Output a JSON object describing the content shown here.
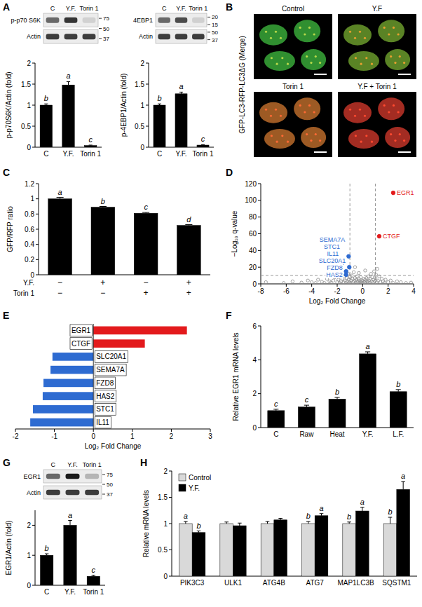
{
  "panel_letters": [
    "A",
    "B",
    "C",
    "D",
    "E",
    "F",
    "G",
    "H"
  ],
  "blots": [
    {
      "lanes": [
        "C",
        "Y.F.",
        "Torin 1"
      ],
      "rows": [
        "p-p70 S6K",
        "Actin"
      ],
      "markers": [
        75,
        50,
        37
      ]
    },
    {
      "lanes": [
        "C",
        "Y.F.",
        "Torin 1"
      ],
      "rows": [
        "4EBP1",
        "Actin"
      ],
      "markers": [
        20,
        15,
        50,
        37
      ]
    },
    {
      "lanes": [
        "C",
        "Y.F.",
        "Torin 1"
      ],
      "rows": [
        "EGR1",
        "Actin"
      ],
      "markers": [
        75,
        50,
        37
      ]
    }
  ],
  "images": {
    "side_label": "GFP-LC3-RFP-LC3ΔG (Merge)",
    "titles": [
      "Control",
      "Y.F",
      "Torin 1",
      "Y.F + Torin 1"
    ]
  },
  "chart_data": [
    {
      "type": "bar",
      "y_label": "p-p70S6K/Actin (fold)",
      "categories": [
        "C",
        "Y.F.",
        "Torin 1"
      ],
      "values": [
        1,
        1.48,
        0.04
      ],
      "errors": [
        0.03,
        0.08,
        0.01
      ],
      "letters": [
        "b",
        "a",
        "c"
      ],
      "color": "#000000",
      "ylim": [
        0,
        2
      ],
      "yticks": [
        0,
        0.5,
        1,
        1.5,
        2
      ]
    },
    {
      "type": "bar",
      "y_label": "p-4EBP1/Actin (fold)",
      "categories": [
        "C",
        "Y.F.",
        "Torin 1"
      ],
      "values": [
        1,
        1.27,
        0.05
      ],
      "errors": [
        0.03,
        0.04,
        0.01
      ],
      "letters": [
        "b",
        "a",
        "c"
      ],
      "color": "#000000",
      "ylim": [
        0,
        2
      ],
      "yticks": [
        0,
        0.5,
        1,
        1.5,
        2
      ]
    },
    {
      "type": "bar",
      "y_label": "GFP/RFP ratio",
      "values": [
        1,
        0.89,
        0.81,
        0.65
      ],
      "errors": [
        0.02,
        0.01,
        0.01,
        0.01
      ],
      "letters": [
        "a",
        "b",
        "c",
        "d"
      ],
      "color": "#000000",
      "ylim": [
        0,
        1.2
      ],
      "yticks": [
        0,
        0.2,
        0.4,
        0.6,
        0.8,
        1,
        1.2
      ],
      "table": {
        "rows": [
          {
            "label": "Y.F.",
            "cells": [
              "−",
              "+",
              "−",
              "+"
            ]
          },
          {
            "label": "Torin 1",
            "cells": [
              "−",
              "−",
              "+",
              "+"
            ]
          }
        ]
      }
    },
    {
      "type": "scatter",
      "x_label": "Log₂ Fold Change",
      "y_label": "−Log₁₀ q-value",
      "xlim": [
        -8,
        4
      ],
      "xticks": [
        -8,
        -6,
        -4,
        -2,
        0,
        2,
        4
      ],
      "ylim": [
        0,
        120
      ],
      "yticks": [
        0,
        20,
        40,
        60,
        80,
        100,
        120
      ],
      "reference_lines": {
        "x": [
          -1,
          1
        ],
        "y": [
          10
        ]
      },
      "series": [
        {
          "color": "#8c8c8c",
          "marker": "open-circle",
          "x": [
            -7.6,
            -6.2,
            -5.5,
            -4.8,
            -4.3,
            -4,
            -3.7,
            -3.5,
            -3.2,
            -3,
            -2.8,
            -2.6,
            -2.5,
            -2.3,
            -2.2,
            -2,
            -1.9,
            -1.8,
            -1.7,
            -1.6,
            -1.5,
            -1.45,
            -1.4,
            -1.3,
            -1.25,
            -1.2,
            -1.15,
            -1.1,
            -1.05,
            -1,
            -0.95,
            -0.9,
            -0.85,
            -0.8,
            -0.75,
            -0.7,
            -0.65,
            -0.6,
            -0.55,
            -0.5,
            -0.45,
            -0.4,
            -0.35,
            -0.3,
            -0.25,
            -0.2,
            -0.15,
            -0.1,
            -0.05,
            0,
            0.05,
            0.1,
            0.15,
            0.2,
            0.25,
            0.3,
            0.35,
            0.4,
            0.45,
            0.5,
            0.55,
            0.6,
            0.65,
            0.7,
            0.75,
            0.8,
            0.85,
            0.9,
            0.95,
            1,
            1.05,
            1.1,
            1.15,
            1.2,
            1.3,
            1.4,
            1.5,
            1.6,
            1.7,
            1.8,
            2,
            2.2,
            2.4,
            2.7,
            3,
            3.4,
            3.8,
            -0.6,
            0.2,
            -0.3
          ],
          "values": [
            2,
            1,
            3,
            1.5,
            4,
            2,
            1,
            5,
            2.5,
            1,
            6,
            3,
            1.5,
            4,
            8,
            2,
            5,
            1,
            3,
            6,
            2,
            9,
            4,
            1,
            7,
            3,
            12,
            5,
            2,
            8,
            1,
            4,
            10,
            6,
            2,
            14,
            3,
            7,
            1,
            5,
            9,
            2,
            4,
            6,
            1,
            3,
            8,
            2,
            4,
            1,
            3,
            6,
            2,
            5,
            1,
            7,
            3,
            2,
            9,
            4,
            1,
            6,
            12,
            3,
            8,
            2,
            5,
            15,
            3,
            7,
            11,
            2,
            18,
            4,
            9,
            2,
            6,
            3,
            1,
            5,
            2,
            4,
            1,
            3,
            2,
            1,
            1.5,
            20,
            16,
            13
          ]
        },
        {
          "color": "#e31a1c",
          "marker": "circle",
          "x": [
            2.4,
            1.3
          ],
          "values": [
            109,
            57
          ],
          "point_labels": [
            "EGR1",
            "CTGF"
          ]
        },
        {
          "color": "#2e6bd1",
          "marker": "circle",
          "x": [
            -1.1,
            -1.5,
            -1.6,
            -1.05,
            -1.3,
            -1.3
          ],
          "values": [
            33,
            29,
            25,
            20,
            15,
            11
          ],
          "point_labels": [
            "SEMA7A",
            "STC1",
            "IL11",
            "SLC20A1",
            "FZD8",
            "HAS2"
          ]
        }
      ]
    },
    {
      "type": "bar",
      "orientation": "horizontal",
      "x_label": "Log₂ Fold Change",
      "categories": [
        "EGR1",
        "CTGF",
        "SLC20A1",
        "SEMA7A",
        "FZD8",
        "HAS2",
        "STC1",
        "IL11"
      ],
      "values": [
        2.4,
        1.32,
        -1.05,
        -1.1,
        -1.28,
        -1.3,
        -1.55,
        -1.62
      ],
      "colors": [
        "#e31a1c",
        "#e31a1c",
        "#2e6bd1",
        "#2e6bd1",
        "#2e6bd1",
        "#2e6bd1",
        "#2e6bd1",
        "#2e6bd1"
      ],
      "xlim": [
        -2,
        3
      ],
      "xticks": [
        -2,
        -1,
        0,
        1,
        2,
        3
      ]
    },
    {
      "type": "bar",
      "y_label": "Relative EGR1 mRNA levels",
      "categories": [
        "C",
        "Raw",
        "Heat",
        "Y.F.",
        "L.F."
      ],
      "values": [
        1,
        1.22,
        1.68,
        4.35,
        2.12
      ],
      "errors": [
        0.08,
        0.1,
        0.1,
        0.12,
        0.12
      ],
      "letters": [
        "c",
        "c",
        "b",
        "a",
        "b"
      ],
      "color": "#000000",
      "ylim": [
        0,
        6
      ],
      "yticks": [
        0,
        2,
        4,
        6
      ]
    },
    {
      "type": "bar",
      "y_label": "EGR1/Actin (fold)",
      "categories": [
        "C",
        "Y.F.",
        "Torin 1"
      ],
      "values": [
        1,
        2,
        0.3
      ],
      "errors": [
        0.05,
        0.16,
        0.03
      ],
      "letters": [
        "b",
        "a",
        "c"
      ],
      "color": "#000000",
      "ylim": [
        0,
        2.5
      ],
      "yticks": [
        0,
        1,
        2
      ]
    },
    {
      "type": "bar",
      "y_label": "Relative mRNA levels",
      "categories": [
        "PIK3C3",
        "ULK1",
        "ATG4B",
        "ATG7",
        "MAP1LC3B",
        "SQSTM1"
      ],
      "legend": "top-left",
      "ylim": [
        0,
        2
      ],
      "yticks": [
        0,
        0.5,
        1,
        1.5,
        2
      ],
      "series": [
        {
          "name": "Control",
          "color": "#d9d9d9",
          "values": [
            1,
            1,
            1,
            1,
            1,
            1
          ],
          "errors": [
            0.04,
            0.03,
            0.04,
            0.04,
            0.03,
            0.12
          ],
          "letters": [
            "a",
            null,
            null,
            "b",
            "b",
            "b"
          ]
        },
        {
          "name": "Y.F.",
          "color": "#000000",
          "values": [
            0.83,
            0.96,
            1.07,
            1.15,
            1.24,
            1.65
          ],
          "errors": [
            0.03,
            0.05,
            0.03,
            0.04,
            0.07,
            0.15
          ],
          "letters": [
            "b",
            null,
            null,
            "a",
            "a",
            "a"
          ]
        }
      ]
    }
  ]
}
